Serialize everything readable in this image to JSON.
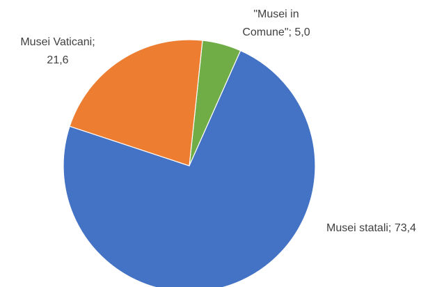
{
  "chart_data": {
    "type": "pie",
    "title": "",
    "categories": [
      "Musei statali",
      "Musei Vaticani",
      "\"Musei in Comune\""
    ],
    "values": [
      73.4,
      21.6,
      5.0
    ],
    "value_labels": [
      "73,4",
      "21,6",
      "5,0"
    ],
    "colors": [
      "#4472C4",
      "#ED7D31",
      "#70AD47"
    ],
    "data_labels": [
      [
        "Musei statali; 73,4"
      ],
      [
        "Musei Vaticani;",
        "21,6"
      ],
      [
        "\"Musei in",
        "Comune\"; 5,0"
      ]
    ],
    "legend": "none"
  }
}
